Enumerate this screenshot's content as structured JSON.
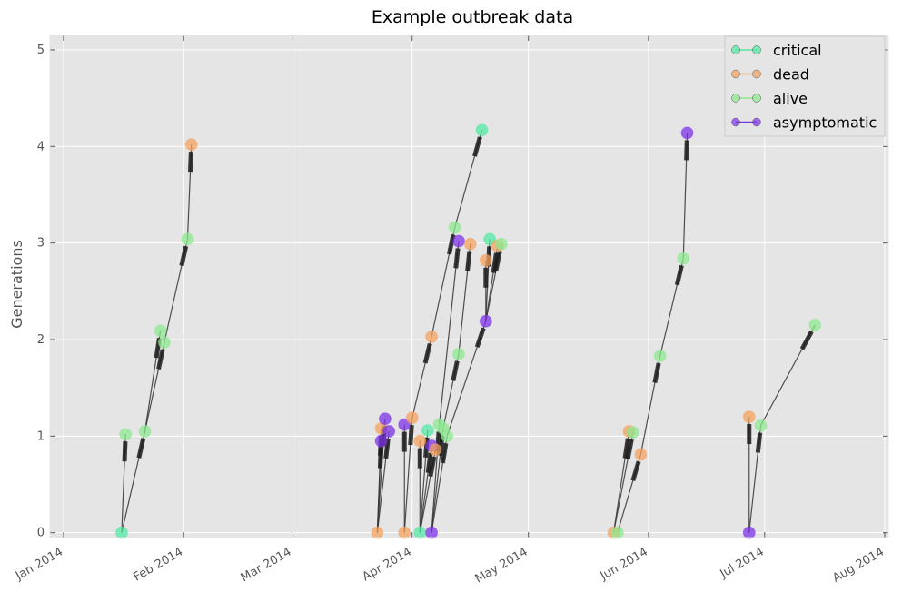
{
  "chart_data": {
    "type": "scatter",
    "title": "Example outbreak data",
    "xlabel": "",
    "ylabel": "Generations",
    "x_ticks": [
      "2014-01-01",
      "2014-02-01",
      "2014-03-01",
      "2014-04-01",
      "2014-05-01",
      "2014-06-01",
      "2014-07-01",
      "2014-08-01"
    ],
    "x_tick_labels": [
      "Jan 2014",
      "Feb 2014",
      "Mar 2014",
      "Apr 2014",
      "May 2014",
      "Jun 2014",
      "Jul 2014",
      "Aug 2014"
    ],
    "xlim": [
      "2014-01-01",
      "2014-08-01"
    ],
    "y_ticks": [
      0,
      1,
      2,
      3,
      4,
      5
    ],
    "ylim": [
      -0.05,
      5.15
    ],
    "grid": true,
    "legend_position": "top-right",
    "legend": [
      {
        "name": "critical",
        "color": "#53e8a3"
      },
      {
        "name": "dead",
        "color": "#f4a15e"
      },
      {
        "name": "alive",
        "color": "#8ee890"
      },
      {
        "name": "asymptomatic",
        "color": "#7e33e6"
      }
    ],
    "points": [
      {
        "id": "a0",
        "date": "2014-01-16",
        "gen": 0.0,
        "status": "critical"
      },
      {
        "id": "a1",
        "date": "2014-01-17",
        "gen": 1.02,
        "status": "alive"
      },
      {
        "id": "a2",
        "date": "2014-01-22",
        "gen": 1.05,
        "status": "alive"
      },
      {
        "id": "a3",
        "date": "2014-01-26",
        "gen": 2.09,
        "status": "alive"
      },
      {
        "id": "a4",
        "date": "2014-01-27",
        "gen": 1.97,
        "status": "alive"
      },
      {
        "id": "a5",
        "date": "2014-02-02",
        "gen": 3.04,
        "status": "alive"
      },
      {
        "id": "a6",
        "date": "2014-02-03",
        "gen": 4.02,
        "status": "dead"
      },
      {
        "id": "b0",
        "date": "2014-03-23",
        "gen": 0.0,
        "status": "dead"
      },
      {
        "id": "b1",
        "date": "2014-03-24",
        "gen": 1.08,
        "status": "dead"
      },
      {
        "id": "b2",
        "date": "2014-03-24",
        "gen": 0.95,
        "status": "asymptomatic"
      },
      {
        "id": "b3",
        "date": "2014-03-25",
        "gen": 1.18,
        "status": "asymptomatic"
      },
      {
        "id": "b4",
        "date": "2014-03-26",
        "gen": 1.05,
        "status": "asymptomatic"
      },
      {
        "id": "b5",
        "date": "2014-03-30",
        "gen": 0.0,
        "status": "dead"
      },
      {
        "id": "b6",
        "date": "2014-03-30",
        "gen": 1.12,
        "status": "asymptomatic"
      },
      {
        "id": "b7",
        "date": "2014-04-01",
        "gen": 1.19,
        "status": "dead"
      },
      {
        "id": "b8",
        "date": "2014-04-03",
        "gen": 0.0,
        "status": "critical"
      },
      {
        "id": "b9",
        "date": "2014-04-03",
        "gen": 0.95,
        "status": "dead"
      },
      {
        "id": "b10",
        "date": "2014-04-05",
        "gen": 1.06,
        "status": "critical"
      },
      {
        "id": "b11",
        "date": "2014-04-06",
        "gen": 0.0,
        "status": "asymptomatic"
      },
      {
        "id": "b12",
        "date": "2014-04-06",
        "gen": 0.9,
        "status": "asymptomatic"
      },
      {
        "id": "b13",
        "date": "2014-04-07",
        "gen": 0.86,
        "status": "dead"
      },
      {
        "id": "b14",
        "date": "2014-04-08",
        "gen": 1.12,
        "status": "alive"
      },
      {
        "id": "b15",
        "date": "2014-04-09",
        "gen": 1.08,
        "status": "alive"
      },
      {
        "id": "b16",
        "date": "2014-04-10",
        "gen": 1.0,
        "status": "alive"
      },
      {
        "id": "b17",
        "date": "2014-04-06",
        "gen": 2.03,
        "status": "dead"
      },
      {
        "id": "b18",
        "date": "2014-04-12",
        "gen": 3.16,
        "status": "alive"
      },
      {
        "id": "b19",
        "date": "2014-04-13",
        "gen": 3.02,
        "status": "asymptomatic"
      },
      {
        "id": "b20",
        "date": "2014-04-13",
        "gen": 1.85,
        "status": "alive"
      },
      {
        "id": "b21",
        "date": "2014-04-16",
        "gen": 2.99,
        "status": "dead"
      },
      {
        "id": "b22",
        "date": "2014-04-19",
        "gen": 4.17,
        "status": "critical"
      },
      {
        "id": "b23",
        "date": "2014-04-20",
        "gen": 2.82,
        "status": "dead"
      },
      {
        "id": "b24",
        "date": "2014-04-20",
        "gen": 2.19,
        "status": "asymptomatic"
      },
      {
        "id": "b25",
        "date": "2014-04-21",
        "gen": 3.04,
        "status": "critical"
      },
      {
        "id": "b26",
        "date": "2014-04-23",
        "gen": 2.97,
        "status": "dead"
      },
      {
        "id": "b27",
        "date": "2014-04-24",
        "gen": 2.99,
        "status": "alive"
      },
      {
        "id": "c0",
        "date": "2014-05-23",
        "gen": 0.0,
        "status": "dead"
      },
      {
        "id": "c1",
        "date": "2014-05-24",
        "gen": 0.0,
        "status": "alive"
      },
      {
        "id": "c2",
        "date": "2014-05-27",
        "gen": 1.05,
        "status": "dead"
      },
      {
        "id": "c3",
        "date": "2014-05-28",
        "gen": 1.04,
        "status": "alive"
      },
      {
        "id": "c4",
        "date": "2014-05-30",
        "gen": 0.81,
        "status": "dead"
      },
      {
        "id": "c5",
        "date": "2014-06-04",
        "gen": 1.83,
        "status": "alive"
      },
      {
        "id": "c6",
        "date": "2014-06-10",
        "gen": 2.84,
        "status": "alive"
      },
      {
        "id": "c7",
        "date": "2014-06-11",
        "gen": 4.14,
        "status": "asymptomatic"
      },
      {
        "id": "d0",
        "date": "2014-06-27",
        "gen": 0.0,
        "status": "asymptomatic"
      },
      {
        "id": "d1",
        "date": "2014-06-27",
        "gen": 1.2,
        "status": "dead"
      },
      {
        "id": "d2",
        "date": "2014-06-30",
        "gen": 1.11,
        "status": "alive"
      },
      {
        "id": "d3",
        "date": "2014-07-14",
        "gen": 2.15,
        "status": "alive"
      }
    ],
    "links": [
      [
        "a0",
        "a1"
      ],
      [
        "a0",
        "a2"
      ],
      [
        "a2",
        "a3"
      ],
      [
        "a2",
        "a4"
      ],
      [
        "a4",
        "a5"
      ],
      [
        "a5",
        "a6"
      ],
      [
        "b0",
        "b1"
      ],
      [
        "b0",
        "b2"
      ],
      [
        "b0",
        "b3"
      ],
      [
        "b0",
        "b4"
      ],
      [
        "b5",
        "b6"
      ],
      [
        "b5",
        "b7"
      ],
      [
        "b7",
        "b17"
      ],
      [
        "b17",
        "b18"
      ],
      [
        "b18",
        "b22"
      ],
      [
        "b8",
        "b9"
      ],
      [
        "b8",
        "b10"
      ],
      [
        "b8",
        "b12"
      ],
      [
        "b8",
        "b13"
      ],
      [
        "b11",
        "b14"
      ],
      [
        "b11",
        "b15"
      ],
      [
        "b11",
        "b16"
      ],
      [
        "b14",
        "b19"
      ],
      [
        "b15",
        "b20"
      ],
      [
        "b20",
        "b21"
      ],
      [
        "b16",
        "b24"
      ],
      [
        "b24",
        "b23"
      ],
      [
        "b24",
        "b25"
      ],
      [
        "b24",
        "b26"
      ],
      [
        "b24",
        "b27"
      ],
      [
        "c0",
        "c2"
      ],
      [
        "c0",
        "c3"
      ],
      [
        "c1",
        "c4"
      ],
      [
        "c4",
        "c5"
      ],
      [
        "c5",
        "c6"
      ],
      [
        "c6",
        "c7"
      ],
      [
        "d0",
        "d1"
      ],
      [
        "d0",
        "d2"
      ],
      [
        "d2",
        "d3"
      ]
    ]
  }
}
